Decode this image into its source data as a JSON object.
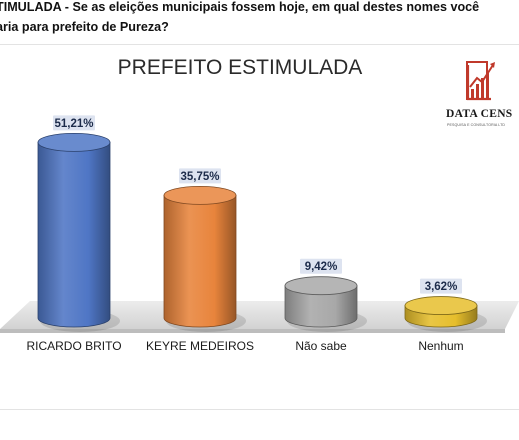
{
  "question": {
    "line1": "TIMULADA - Se as eleições municipais fossem hoje, em qual destes nomes você",
    "line2": "aria para prefeito de Pureza?"
  },
  "logo": {
    "name": "DATA CENS",
    "tagline": "PESQUISA E CONSULTORIA LTD",
    "icon": "bar-chart-growth-icon"
  },
  "chart_data": {
    "type": "bar",
    "style": "3d-cylinder",
    "title": "PREFEITO ESTIMULADA",
    "categories": [
      "RICARDO BRITO",
      "KEYRE MEDEIROS",
      "Não sabe",
      "Nenhum"
    ],
    "values": [
      51.21,
      35.75,
      9.42,
      3.62
    ],
    "data_labels": [
      "51,21%",
      "35,75%",
      "9,42%",
      "3,62%"
    ],
    "colors": [
      "#4f76c5",
      "#e8843c",
      "#a8a8a8",
      "#e6be2c"
    ],
    "xlabel": "",
    "ylabel": "",
    "grid": false,
    "legend": false
  }
}
